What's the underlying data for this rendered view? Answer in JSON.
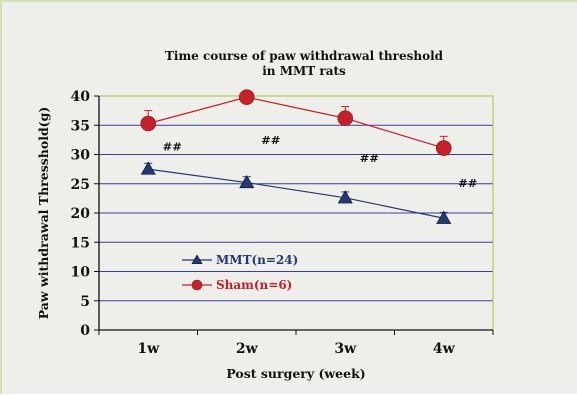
{
  "chart_data": {
    "type": "line",
    "title": "Time course of paw withdrawal threshold",
    "subtitle": "in MMT rats",
    "xlabel": "Post surgery (week)",
    "ylabel": "Paw withdrawal Thresshold(g)",
    "categories": [
      "1w",
      "2w",
      "3w",
      "4w"
    ],
    "ylim": [
      0,
      40
    ],
    "yticks": [
      0,
      5,
      10,
      15,
      20,
      25,
      30,
      35,
      40
    ],
    "grid": true,
    "legend_position": "lower-left",
    "series": [
      {
        "name": "MMT(n=24)",
        "values": [
          27.5,
          25.2,
          22.6,
          19.1
        ],
        "errors": [
          1.0,
          1.0,
          1.0,
          1.0
        ],
        "color": "#1f3a78",
        "marker": "triangle"
      },
      {
        "name": "Sham(n=6)",
        "values": [
          35.3,
          39.8,
          36.2,
          31.1
        ],
        "errors": [
          2.2,
          0.4,
          2.0,
          2.0
        ],
        "color": "#c8202a",
        "marker": "circle"
      }
    ],
    "annotations": [
      {
        "text": "##",
        "category": "1w"
      },
      {
        "text": "##",
        "category": "2w"
      },
      {
        "text": "##",
        "category": "3w"
      },
      {
        "text": "##",
        "category": "4w"
      }
    ],
    "colors": {
      "gridline": "#3b3f9e",
      "plot_border": "#9acd32",
      "axis": "#111111"
    }
  }
}
